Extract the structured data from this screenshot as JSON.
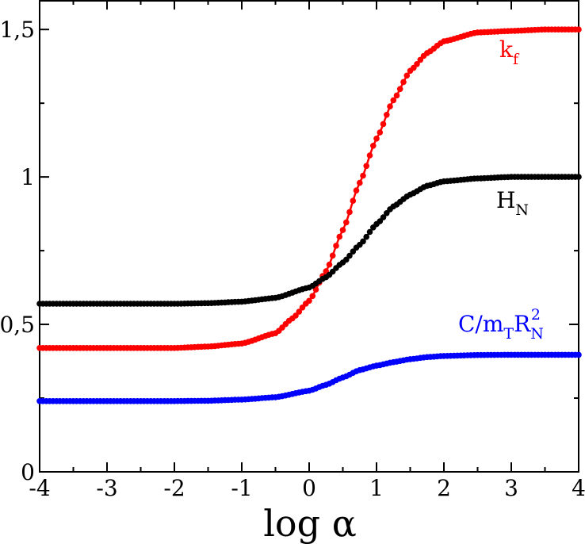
{
  "chart_data": {
    "type": "line",
    "title": "",
    "xlabel": "log α",
    "ylabel": "",
    "xlim": [
      -4,
      4
    ],
    "ylim": [
      0,
      1.6
    ],
    "x_ticks": [
      "-4",
      "-3",
      "-2",
      "-1",
      "0",
      "1",
      "2",
      "3",
      "4"
    ],
    "y_ticks": [
      "0",
      "0,5",
      "1",
      "1,5"
    ],
    "grid": false,
    "legend": "none",
    "series": [
      {
        "label": "k_f",
        "color": "#ff0000",
        "x": [
          -4,
          -3.5,
          -3,
          -2.5,
          -2,
          -1.5,
          -1,
          -0.5,
          -0.25,
          0,
          0.25,
          0.5,
          0.75,
          1,
          1.25,
          1.5,
          1.75,
          2,
          2.5,
          3,
          3.5,
          4
        ],
        "y": [
          0.42,
          0.42,
          0.42,
          0.42,
          0.42,
          0.425,
          0.435,
          0.47,
          0.52,
          0.58,
          0.68,
          0.82,
          0.98,
          1.13,
          1.26,
          1.36,
          1.42,
          1.46,
          1.49,
          1.495,
          1.5,
          1.5
        ]
      },
      {
        "label": "H_N",
        "color": "#000000",
        "x": [
          -4,
          -3,
          -2,
          -1.5,
          -1,
          -0.5,
          0,
          0.25,
          0.5,
          0.75,
          1,
          1.25,
          1.5,
          1.75,
          2,
          2.5,
          3,
          3.5,
          4
        ],
        "y": [
          0.57,
          0.57,
          0.57,
          0.572,
          0.577,
          0.59,
          0.625,
          0.66,
          0.71,
          0.77,
          0.84,
          0.9,
          0.94,
          0.97,
          0.985,
          0.995,
          1.0,
          1.0,
          1.0
        ]
      },
      {
        "label": "C/m_T R_N^2",
        "color": "#0000ff",
        "x": [
          -4,
          -3,
          -2,
          -1.5,
          -1,
          -0.5,
          0,
          0.25,
          0.5,
          0.75,
          1,
          1.25,
          1.5,
          1.75,
          2,
          2.5,
          3,
          3.5,
          4
        ],
        "y": [
          0.24,
          0.24,
          0.24,
          0.241,
          0.245,
          0.253,
          0.275,
          0.295,
          0.32,
          0.345,
          0.36,
          0.372,
          0.382,
          0.389,
          0.393,
          0.396,
          0.397,
          0.397,
          0.397
        ]
      }
    ],
    "annotations": [
      {
        "main": "k",
        "sub": "f",
        "sup": "",
        "tail": "",
        "color": "#ff0000"
      },
      {
        "main": "H",
        "sub": "N",
        "sup": "",
        "tail": "",
        "color": "#000000"
      },
      {
        "main": "C/m",
        "sub": "T",
        "sup": "",
        "tail": "R",
        "sub2": "N",
        "sup2": "2",
        "color": "#0000ff"
      }
    ]
  }
}
